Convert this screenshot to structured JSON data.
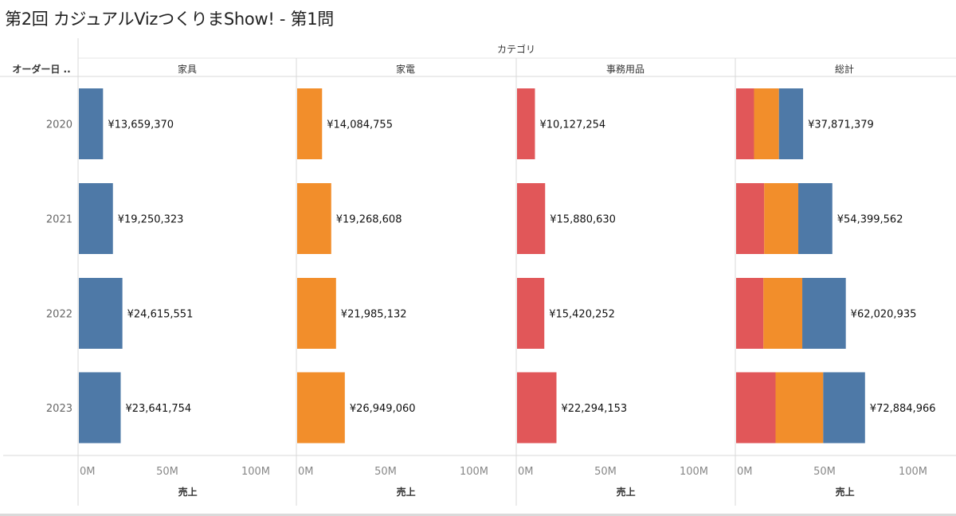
{
  "title": "第2回 カジュアルVizつくりまShow! - 第1問",
  "chart_data": {
    "type": "bar",
    "column_header": "カテゴリ",
    "row_header": "オーダー日 ..",
    "categories": [
      "2020",
      "2021",
      "2022",
      "2023"
    ],
    "xlabel": "売上",
    "xlim": [
      0,
      100000000
    ],
    "xticks": [
      "0M",
      "50M",
      "100M"
    ],
    "colors": {
      "家具": "#4e79a7",
      "家電": "#f28e2b",
      "事務用品": "#e15759"
    },
    "panels": [
      {
        "name": "家具",
        "color": "#4e79a7",
        "values": [
          13659370,
          19250323,
          24615551,
          23641754
        ],
        "labels": [
          "¥13,659,370",
          "¥19,250,323",
          "¥24,615,551",
          "¥23,641,754"
        ]
      },
      {
        "name": "家電",
        "color": "#f28e2b",
        "values": [
          14084755,
          19268608,
          21985132,
          26949060
        ],
        "labels": [
          "¥14,084,755",
          "¥19,268,608",
          "¥21,985,132",
          "¥26,949,060"
        ]
      },
      {
        "name": "事務用品",
        "color": "#e15759",
        "values": [
          10127254,
          15880630,
          15420252,
          22294153
        ],
        "labels": [
          "¥10,127,254",
          "¥15,880,630",
          "¥15,420,252",
          "¥22,294,153"
        ]
      },
      {
        "name": "総計",
        "stacked": true,
        "series": [
          {
            "name": "事務用品",
            "color": "#e15759",
            "values": [
              10127254,
              15880630,
              15420252,
              22294153
            ]
          },
          {
            "name": "家電",
            "color": "#f28e2b",
            "values": [
              14084755,
              19268608,
              21985132,
              26949060
            ]
          },
          {
            "name": "家具",
            "color": "#4e79a7",
            "values": [
              13659370,
              19250323,
              24615551,
              23641754
            ]
          }
        ],
        "totals": [
          37871379,
          54399562,
          62020935,
          72884966
        ],
        "labels": [
          "¥37,871,379",
          "¥54,399,562",
          "¥62,020,935",
          "¥72,884,966"
        ]
      }
    ]
  }
}
